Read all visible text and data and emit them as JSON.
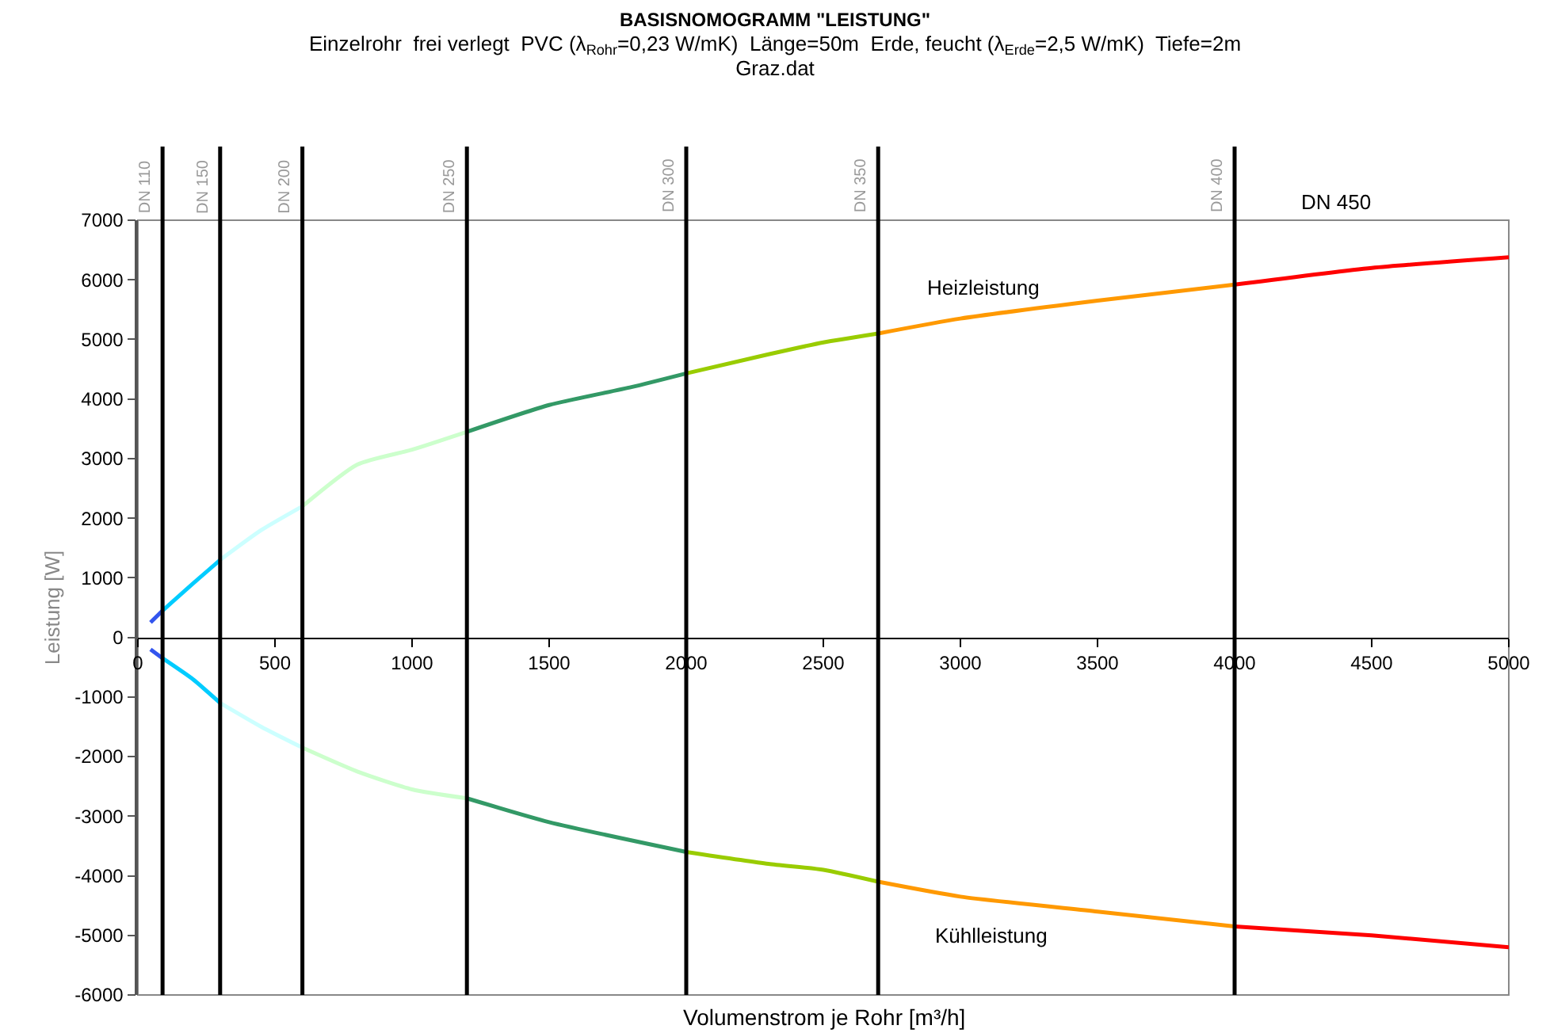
{
  "chart_data": {
    "type": "line",
    "title": "BASISNOMOGRAMM \"LEISTUNG\"",
    "subtitle": "Einzelrohr  frei verlegt  PVC (λ$_{Rohr}$=0,23 W/mK)  Länge=50m  Erde, feucht (λ$_{Erde}$=2,5 W/mK)  Tiefe=2m\nGraz.dat",
    "xlabel": "Volumenstrom je Rohr [m³/h]",
    "ylabel": "Leistung [W]",
    "xlim": [
      0,
      5000
    ],
    "xticks": [
      0,
      500,
      1000,
      1500,
      2000,
      2500,
      3000,
      3500,
      4000,
      4500,
      5000
    ],
    "ylim": [
      -6000,
      7000
    ],
    "yticks": [
      -6000,
      -5000,
      -4000,
      -3000,
      -2000,
      -1000,
      0,
      1000,
      2000,
      3000,
      4000,
      5000,
      6000,
      7000
    ],
    "grid": false,
    "marker": "none",
    "line_style": "solid",
    "series": [
      {
        "color": "#3355ee",
        "x": [
          46,
          90
        ],
        "values": [
          250,
          450
        ]
      },
      {
        "color": "#00ccff",
        "x": [
          90,
          200,
          300
        ],
        "values": [
          450,
          900,
          1300
        ]
      },
      {
        "color": "#ccffff",
        "x": [
          300,
          450,
          600
        ],
        "values": [
          1300,
          1800,
          2200
        ]
      },
      {
        "color": "#ccffcc",
        "x": [
          600,
          800,
          1000,
          1200
        ],
        "values": [
          2200,
          2900,
          3150,
          3450
        ]
      },
      {
        "color": "#339966",
        "x": [
          1200,
          1500,
          1800,
          2000
        ],
        "values": [
          3450,
          3900,
          4200,
          4430
        ]
      },
      {
        "color": "#99cc00",
        "x": [
          2000,
          2300,
          2500,
          2700
        ],
        "values": [
          4430,
          4750,
          4950,
          5100
        ]
      },
      {
        "color": "#ff9900",
        "x": [
          2700,
          3000,
          3500,
          4000
        ],
        "values": [
          5100,
          5350,
          5650,
          5920
        ]
      },
      {
        "color": "#ff0000",
        "x": [
          4000,
          4500,
          5000
        ],
        "values": [
          5920,
          6200,
          6380
        ]
      },
      {
        "color": "#3355ee",
        "x": [
          46,
          90
        ],
        "values": [
          -200,
          -350
        ]
      },
      {
        "color": "#00ccff",
        "x": [
          90,
          200,
          300
        ],
        "values": [
          -350,
          -700,
          -1100
        ]
      },
      {
        "color": "#ccffff",
        "x": [
          300,
          450,
          600
        ],
        "values": [
          -1100,
          -1500,
          -1850
        ]
      },
      {
        "color": "#ccffcc",
        "x": [
          600,
          800,
          1000,
          1200
        ],
        "values": [
          -1850,
          -2250,
          -2550,
          -2700
        ]
      },
      {
        "color": "#339966",
        "x": [
          1200,
          1500,
          2000
        ],
        "values": [
          -2700,
          -3100,
          -3600
        ]
      },
      {
        "color": "#99cc00",
        "x": [
          2000,
          2300,
          2500,
          2700
        ],
        "values": [
          -3600,
          -3800,
          -3900,
          -4100
        ]
      },
      {
        "color": "#ff9900",
        "x": [
          2700,
          3000,
          3500,
          4000
        ],
        "values": [
          -4100,
          -4350,
          -4600,
          -4850
        ]
      },
      {
        "color": "#ff0000",
        "x": [
          4000,
          4500,
          5000
        ],
        "values": [
          -4850,
          -5000,
          -5200
        ]
      }
    ],
    "ref_lines": [
      {
        "axis": "x",
        "value": 90,
        "label": "DN 110",
        "color": "#000000"
      },
      {
        "axis": "x",
        "value": 300,
        "label": "DN 150",
        "color": "#000000"
      },
      {
        "axis": "x",
        "value": 600,
        "label": "DN 200",
        "color": "#000000"
      },
      {
        "axis": "x",
        "value": 1200,
        "label": "DN 250",
        "color": "#000000"
      },
      {
        "axis": "x",
        "value": 2000,
        "label": "DN 300",
        "color": "#000000"
      },
      {
        "axis": "x",
        "value": 2700,
        "label": "DN 350",
        "color": "#000000"
      },
      {
        "axis": "x",
        "value": 4000,
        "label": "DN 400",
        "color": "#000000"
      }
    ],
    "annotations": [
      "Heizleistung",
      "Kühlleistung",
      "DN 450"
    ]
  }
}
